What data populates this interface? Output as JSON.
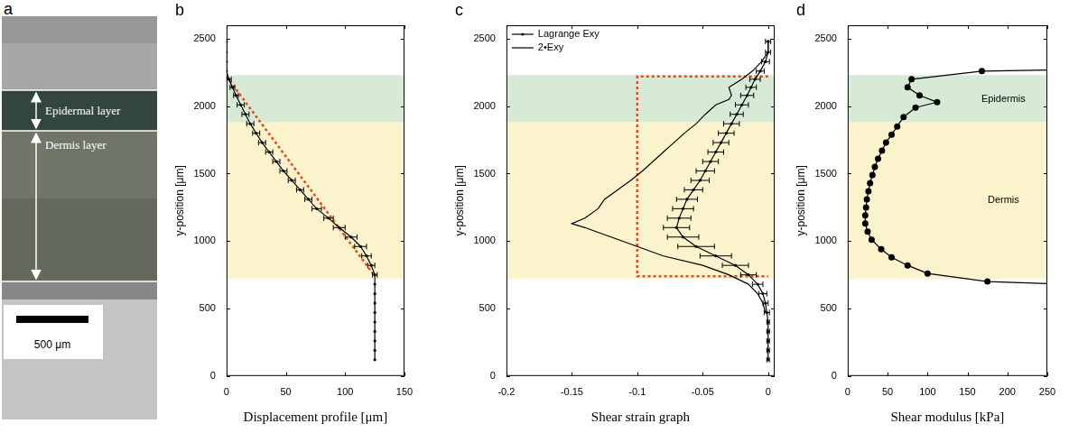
{
  "image_panel": {
    "panel": "a",
    "labels": {
      "epidermis": "Epidermal layer",
      "dermis": "Dermis layer"
    },
    "scale_bar": "500 μm"
  },
  "chart_data": [
    {
      "panel": "b",
      "type": "line",
      "xlabel": "Displacement profile [μm]",
      "ylabel": "y-position [μm]",
      "xlim": [
        0,
        150
      ],
      "xticks": [
        0,
        50,
        100,
        150
      ],
      "ylim": [
        0,
        2600
      ],
      "yticks": [
        0,
        500,
        1000,
        1500,
        2000,
        2500
      ],
      "grid": false,
      "bands": [
        {
          "from": 1880,
          "to": 2230,
          "color": "#d6ead6"
        },
        {
          "from": 720,
          "to": 1880,
          "color": "#fbf3cc"
        }
      ],
      "series": [
        {
          "color": "#000000",
          "marker": "point",
          "line_style": "solid",
          "x": [
            0,
            0,
            0,
            0,
            2,
            5,
            8,
            12,
            16,
            20,
            25,
            30,
            36,
            42,
            48,
            55,
            62,
            69,
            76,
            86,
            95,
            105,
            113,
            118,
            122,
            125,
            125,
            125,
            125,
            125,
            125,
            125,
            125,
            125,
            125
          ],
          "y": [
            2480,
            2400,
            2330,
            2260,
            2200,
            2140,
            2080,
            2010,
            1940,
            1870,
            1800,
            1730,
            1660,
            1590,
            1520,
            1450,
            1380,
            1310,
            1240,
            1170,
            1100,
            1030,
            960,
            890,
            820,
            750,
            680,
            610,
            540,
            470,
            400,
            330,
            260,
            190,
            120
          ],
          "x_errors": [
            0,
            0,
            0,
            0,
            2,
            2,
            2,
            3,
            3,
            3,
            3,
            3,
            3,
            3,
            3,
            3,
            3,
            3,
            4,
            4,
            5,
            5,
            5,
            4,
            3,
            2,
            0,
            0,
            0,
            0,
            0,
            0,
            0,
            0,
            0
          ]
        },
        {
          "color": "#e8491d",
          "marker": "none",
          "line_style": "dotted",
          "x": [
            0,
            125
          ],
          "y": [
            2220,
            740
          ]
        }
      ]
    },
    {
      "panel": "c",
      "type": "line",
      "xlabel": "Shear strain graph",
      "ylabel": "y-position [μm]",
      "xlim": [
        -0.2,
        0.005
      ],
      "xticks": [
        -0.2,
        -0.15,
        -0.1,
        -0.05,
        0
      ],
      "ylim": [
        0,
        2600
      ],
      "yticks": [
        0,
        500,
        1000,
        1500,
        2000,
        2500
      ],
      "grid": false,
      "legend": "upper left",
      "bands": [
        {
          "from": 1880,
          "to": 2230,
          "color": "#d6ead6"
        },
        {
          "from": 720,
          "to": 1880,
          "color": "#fbf3cc"
        }
      ],
      "series": [
        {
          "name": "Lagrange Exy",
          "color": "#000000",
          "marker": "point",
          "line_style": "solid",
          "x": [
            0,
            0,
            -0.002,
            -0.006,
            -0.01,
            -0.013,
            -0.016,
            -0.02,
            -0.024,
            -0.028,
            -0.032,
            -0.036,
            -0.04,
            -0.044,
            -0.048,
            -0.052,
            -0.057,
            -0.062,
            -0.065,
            -0.068,
            -0.07,
            -0.065,
            -0.055,
            -0.04,
            -0.025,
            -0.015,
            -0.008,
            -0.004,
            -0.002,
            -0.001,
            0,
            0,
            0,
            0,
            0
          ],
          "y": [
            2480,
            2400,
            2330,
            2260,
            2200,
            2140,
            2080,
            2010,
            1940,
            1870,
            1800,
            1730,
            1660,
            1590,
            1520,
            1450,
            1380,
            1310,
            1240,
            1170,
            1100,
            1030,
            960,
            890,
            820,
            750,
            680,
            610,
            540,
            470,
            400,
            330,
            260,
            190,
            120
          ],
          "x_errors": [
            0.002,
            0.002,
            0.003,
            0.003,
            0.004,
            0.004,
            0.005,
            0.005,
            0.005,
            0.006,
            0.006,
            0.006,
            0.006,
            0.006,
            0.007,
            0.007,
            0.007,
            0.008,
            0.008,
            0.009,
            0.01,
            0.012,
            0.014,
            0.012,
            0.01,
            0.006,
            0.004,
            0.003,
            0.002,
            0.002,
            0.001,
            0.001,
            0.001,
            0.001,
            0.001
          ]
        },
        {
          "name": "2•Exy",
          "color": "#000000",
          "marker": "none",
          "line_style": "solid",
          "x": [
            0,
            0,
            -0.005,
            -0.012,
            -0.02,
            -0.03,
            -0.028,
            -0.03,
            -0.04,
            -0.048,
            -0.055,
            -0.064,
            -0.072,
            -0.08,
            -0.088,
            -0.096,
            -0.105,
            -0.115,
            -0.125,
            -0.13,
            -0.14,
            -0.15,
            -0.14,
            -0.12,
            -0.1,
            -0.08,
            -0.05,
            -0.03,
            -0.015,
            -0.008,
            -0.004,
            -0.002
          ],
          "y": [
            2480,
            2400,
            2330,
            2260,
            2200,
            2140,
            2080,
            2050,
            2010,
            1940,
            1870,
            1800,
            1730,
            1660,
            1590,
            1520,
            1450,
            1380,
            1310,
            1240,
            1170,
            1130,
            1100,
            1030,
            960,
            890,
            820,
            750,
            680,
            610,
            540,
            470
          ]
        },
        {
          "color": "#e8491d",
          "marker": "none",
          "line_style": "dotted",
          "x": [
            0,
            -0.1,
            -0.1,
            0
          ],
          "y": [
            2220,
            2220,
            740,
            740
          ]
        }
      ]
    },
    {
      "panel": "d",
      "type": "line",
      "xlabel": "Shear modulus [kPa]",
      "ylabel": "y-position [μm]",
      "xlim": [
        0,
        250
      ],
      "xticks": [
        0,
        50,
        100,
        150,
        200,
        250
      ],
      "ylim": [
        0,
        2600
      ],
      "yticks": [
        0,
        500,
        1000,
        1500,
        2000,
        2500
      ],
      "grid": false,
      "bands": [
        {
          "from": 1880,
          "to": 2230,
          "color": "#d6ead6",
          "label": "Epidermis"
        },
        {
          "from": 720,
          "to": 1880,
          "color": "#fbf3cc",
          "label": "Dermis"
        }
      ],
      "series": [
        {
          "color": "#000000",
          "marker": "circle",
          "line_style": "solid",
          "x": [
            250,
            168,
            80,
            75,
            90,
            112,
            85,
            70,
            62,
            55,
            48,
            43,
            38,
            34,
            31,
            28,
            26,
            24,
            23,
            22,
            22,
            25,
            30,
            42,
            55,
            75,
            100,
            175,
            250
          ],
          "y": [
            2268,
            2260,
            2200,
            2140,
            2080,
            2030,
            1990,
            1920,
            1850,
            1790,
            1730,
            1670,
            1610,
            1550,
            1490,
            1430,
            1370,
            1310,
            1250,
            1190,
            1130,
            1070,
            1010,
            940,
            880,
            820,
            760,
            700,
            685
          ]
        }
      ]
    }
  ]
}
